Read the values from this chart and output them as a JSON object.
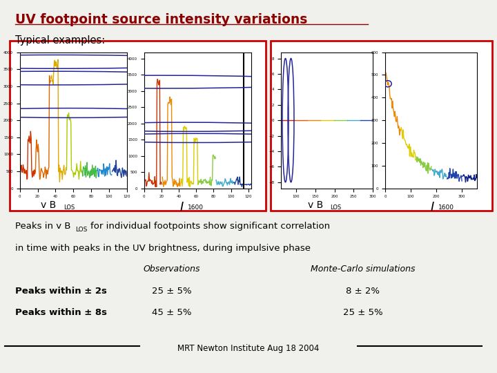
{
  "title": "UV footpoint source intensity variations",
  "subtitle": "Typical examples:",
  "bg_color": "#f0f0ec",
  "title_color": "#8b0000",
  "box_color": "#cc0000",
  "body_line1a": "Peaks in v B",
  "body_line1_sub": "LOS",
  "body_line1b": "for individual footpoints show significant correlation",
  "body_line2": "in time with peaks in the UV brightness, during impulsive phase",
  "obs_header": "Observations",
  "mc_header": "Monte-Carlo simulations",
  "row1_label": "Peaks within ± 2s",
  "row1_obs": "25 ± 5%",
  "row1_mc": "8 ± 2%",
  "row2_label": "Peaks within ± 8s",
  "row2_obs": "45 ± 5%",
  "row2_mc": "25 ± 5%",
  "footer": "MRT Newton Institute Aug 18 2004",
  "chart1_colors": [
    "#cc3300",
    "#dd6600",
    "#ddaa00",
    "#aacc00",
    "#44bb44",
    "#2288cc",
    "#224499"
  ],
  "chart2_colors": [
    "#cc3300",
    "#ee8800",
    "#ddcc00",
    "#88cc44",
    "#44aacc",
    "#224499"
  ],
  "chart3_colors": [
    "#cc2200",
    "#ee5500",
    "#ee8800",
    "#ddcc00",
    "#88cc44",
    "#44aacc",
    "#2244aa"
  ],
  "chart4_colors": [
    "#ee8800",
    "#ddcc00",
    "#88cc44",
    "#44aacc",
    "#2244aa",
    "#112288"
  ]
}
